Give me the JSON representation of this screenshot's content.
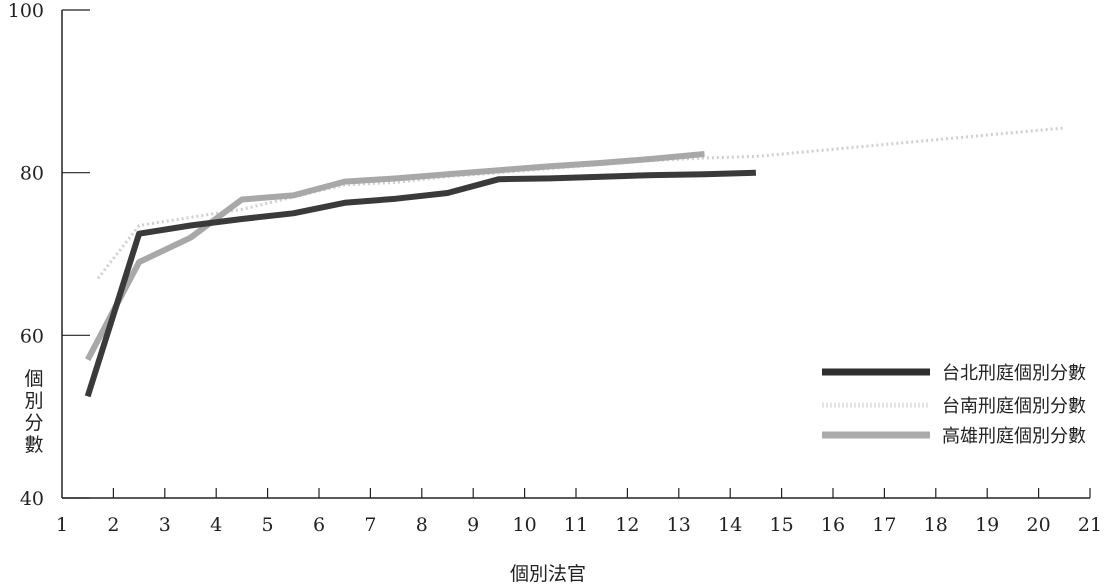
{
  "chart_data": {
    "type": "line",
    "xlabel": "個別法官",
    "ylabel": "個別分數",
    "xlim": [
      1,
      21
    ],
    "ylim": [
      40,
      100
    ],
    "x_ticks": [
      "1",
      "2",
      "3",
      "4",
      "5",
      "6",
      "7",
      "8",
      "9",
      "10",
      "11",
      "12",
      "13",
      "14",
      "15",
      "16",
      "17",
      "18",
      "19",
      "20",
      "21"
    ],
    "y_ticks": [
      "40",
      "60",
      "80",
      "100"
    ],
    "legend_position": "right",
    "grid": false,
    "series": [
      {
        "name": "台北刑庭個別分數",
        "color": "#3a3a3a",
        "style": "solid-dark",
        "points": [
          [
            1.5,
            52.5
          ],
          [
            2.5,
            72.5
          ],
          [
            3.5,
            73.5
          ],
          [
            4.5,
            74.3
          ],
          [
            5.5,
            75.0
          ],
          [
            6.5,
            76.3
          ],
          [
            7.5,
            76.8
          ],
          [
            8.5,
            77.5
          ],
          [
            9.5,
            79.2
          ],
          [
            10.5,
            79.3
          ],
          [
            11.5,
            79.5
          ],
          [
            12.5,
            79.7
          ],
          [
            13.5,
            79.8
          ],
          [
            14.5,
            80.0
          ]
        ]
      },
      {
        "name": "台南刑庭個別分數",
        "color": "#cfcfcf",
        "style": "dotted-light",
        "points": [
          [
            1.7,
            67.0
          ],
          [
            2.5,
            73.5
          ],
          [
            3.5,
            74.5
          ],
          [
            4.5,
            75.5
          ],
          [
            5.5,
            77.0
          ],
          [
            6.5,
            78.5
          ],
          [
            7.5,
            78.8
          ],
          [
            8.5,
            79.5
          ],
          [
            9.5,
            80.0
          ],
          [
            10.5,
            80.5
          ],
          [
            11.5,
            81.0
          ],
          [
            12.5,
            81.5
          ],
          [
            13.5,
            81.8
          ],
          [
            14.5,
            82.0
          ],
          [
            20.5,
            85.5
          ]
        ]
      },
      {
        "name": "高雄刑庭個別分數",
        "color": "#a8a8a8",
        "style": "solid-gray",
        "points": [
          [
            1.5,
            57.0
          ],
          [
            2.5,
            69.0
          ],
          [
            3.5,
            72.0
          ],
          [
            4.5,
            76.7
          ],
          [
            5.5,
            77.2
          ],
          [
            6.5,
            78.9
          ],
          [
            7.5,
            79.3
          ],
          [
            8.5,
            79.8
          ],
          [
            9.5,
            80.3
          ],
          [
            10.5,
            80.8
          ],
          [
            11.5,
            81.2
          ],
          [
            12.5,
            81.7
          ],
          [
            13.5,
            82.3
          ]
        ]
      }
    ]
  }
}
